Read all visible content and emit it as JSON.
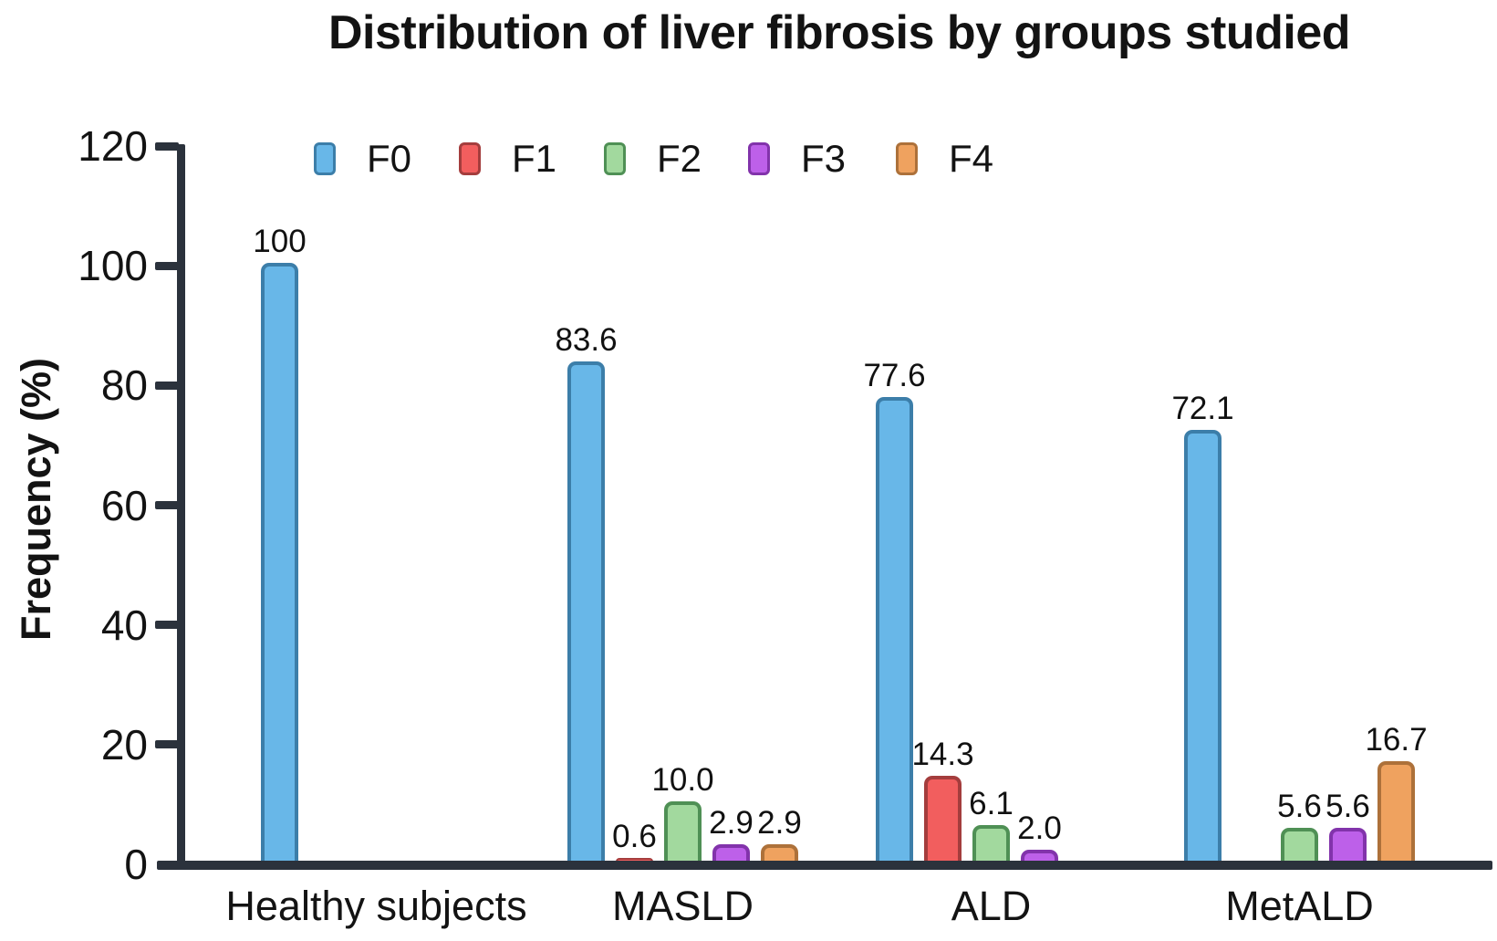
{
  "chart_data": {
    "type": "bar",
    "title": "Distribution of liver fibrosis by groups studied",
    "ylabel": "Frequency (%)",
    "xlabel": "",
    "ylim": [
      0,
      120
    ],
    "yticks": [
      0,
      20,
      40,
      60,
      80,
      100,
      120
    ],
    "categories": [
      "Healthy subjects",
      "MASLD",
      "ALD",
      "MetALD"
    ],
    "series": [
      {
        "name": "F0",
        "fill": "#68b7e8",
        "border": "#3c7ea9",
        "values": [
          100,
          83.6,
          77.6,
          72.1
        ],
        "value_labels": [
          "100",
          "83.6",
          "77.6",
          "72.1"
        ]
      },
      {
        "name": "F1",
        "fill": "#f25e5e",
        "border": "#a43d3d",
        "values": [
          null,
          0.6,
          14.3,
          null
        ],
        "value_labels": [
          null,
          "0.6",
          "14.3",
          null
        ]
      },
      {
        "name": "F2",
        "fill": "#a2d99e",
        "border": "#4f9055",
        "values": [
          null,
          10.0,
          6.1,
          5.6
        ],
        "value_labels": [
          null,
          "10.0",
          "6.1",
          "5.6"
        ]
      },
      {
        "name": "F3",
        "fill": "#bd60e9",
        "border": "#8233ab",
        "values": [
          null,
          2.9,
          2.0,
          5.6
        ],
        "value_labels": [
          null,
          "2.9",
          "2.0",
          "5.6"
        ]
      },
      {
        "name": "F4",
        "fill": "#efa25f",
        "border": "#ad713a",
        "values": [
          null,
          2.9,
          null,
          16.7
        ],
        "value_labels": [
          null,
          "2.9",
          null,
          "16.7"
        ]
      }
    ],
    "legend": {
      "position": "top",
      "entries": [
        "F0",
        "F1",
        "F2",
        "F3",
        "F4"
      ]
    },
    "grid": false,
    "axis_color": "#2b323c",
    "text_color": "#131313"
  }
}
